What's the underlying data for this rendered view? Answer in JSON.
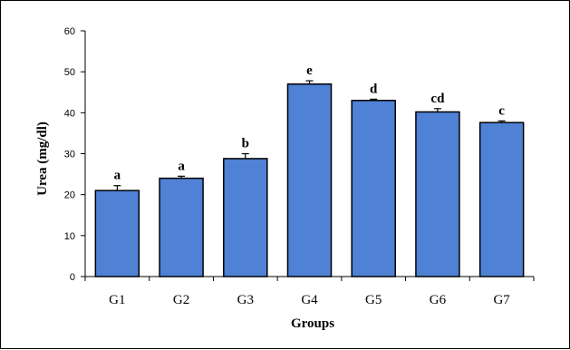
{
  "chart_data": {
    "type": "bar",
    "categories": [
      "G1",
      "G2",
      "G3",
      "G4",
      "G5",
      "G6",
      "G7"
    ],
    "values": [
      21,
      24,
      28.8,
      47,
      43,
      40.2,
      37.6
    ],
    "errors": [
      1.2,
      0.5,
      1.2,
      0.8,
      0.3,
      0.8,
      0.4
    ],
    "significance_letters": [
      "a",
      "a",
      "b",
      "e",
      "d",
      "cd",
      "c"
    ],
    "xlabel": "Groups",
    "ylabel": "Urea (mg/dl)",
    "ylim": [
      0,
      60
    ],
    "yticks": [
      0,
      10,
      20,
      30,
      40,
      50,
      60
    ],
    "grid": false,
    "legend": "none",
    "bar_color": "#4f81d5",
    "bar_edge_color": "#000000"
  }
}
